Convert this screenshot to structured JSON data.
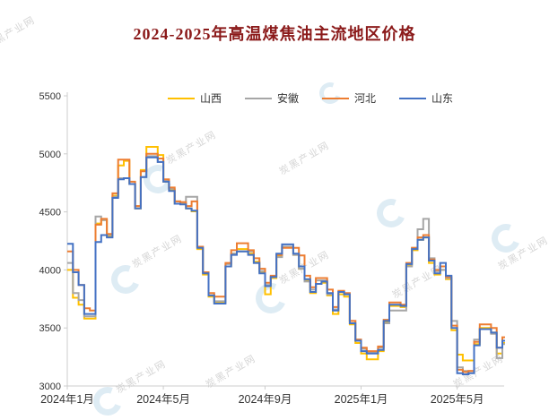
{
  "title": "2024-2025年高温煤焦油主流地区价格",
  "title_color": "#8B1A1A",
  "legend": [
    {
      "label": "山西",
      "color": "#FFC000"
    },
    {
      "label": "安徽",
      "color": "#A6A6A6"
    },
    {
      "label": "河北",
      "color": "#ED7D31"
    },
    {
      "label": "山东",
      "color": "#4472C4"
    }
  ],
  "watermark": {
    "text": "炭黑产业网"
  },
  "axis": {
    "y_tick_labels": [
      "3000",
      "3500",
      "4000",
      "4500",
      "5000",
      "5500"
    ],
    "x_tick_labels": [
      "2024年1月",
      "2024年5月",
      "2024年9月",
      "2025年1月",
      "2025年5月"
    ],
    "axis_color": "#cccccc",
    "label_color": "#333333"
  },
  "chart_data": {
    "type": "line",
    "step": "end",
    "title": "2024-2025年高温煤焦油主流地区价格",
    "xlabel": "",
    "ylabel": "",
    "ylim": [
      3000,
      5500
    ],
    "y_ticks": [
      3000,
      3500,
      4000,
      4500,
      5000,
      5500
    ],
    "grid": false,
    "legend_position": "top",
    "x_tick_labels": [
      "2024年1月",
      "2024年5月",
      "2024年9月",
      "2025年1月",
      "2025年5月"
    ],
    "x_tick_indices": [
      0,
      17,
      35,
      52,
      69
    ],
    "x": [
      "2024-01-05",
      "2024-01-12",
      "2024-01-19",
      "2024-01-26",
      "2024-02-02",
      "2024-02-09",
      "2024-02-16",
      "2024-02-23",
      "2024-03-01",
      "2024-03-08",
      "2024-03-15",
      "2024-03-22",
      "2024-03-29",
      "2024-04-05",
      "2024-04-12",
      "2024-04-19",
      "2024-04-26",
      "2024-05-03",
      "2024-05-10",
      "2024-05-17",
      "2024-05-24",
      "2024-05-31",
      "2024-06-07",
      "2024-06-14",
      "2024-06-21",
      "2024-06-28",
      "2024-07-05",
      "2024-07-12",
      "2024-07-19",
      "2024-07-26",
      "2024-08-02",
      "2024-08-09",
      "2024-08-16",
      "2024-08-23",
      "2024-08-30",
      "2024-09-06",
      "2024-09-13",
      "2024-09-20",
      "2024-09-27",
      "2024-10-04",
      "2024-10-11",
      "2024-10-18",
      "2024-10-25",
      "2024-11-01",
      "2024-11-08",
      "2024-11-15",
      "2024-11-22",
      "2024-11-29",
      "2024-12-06",
      "2024-12-13",
      "2024-12-20",
      "2024-12-27",
      "2025-01-03",
      "2025-01-10",
      "2025-01-17",
      "2025-01-24",
      "2025-01-31",
      "2025-02-07",
      "2025-02-14",
      "2025-02-21",
      "2025-02-28",
      "2025-03-07",
      "2025-03-14",
      "2025-03-21",
      "2025-03-28",
      "2025-04-04",
      "2025-04-11",
      "2025-04-18",
      "2025-04-25",
      "2025-05-02",
      "2025-05-09",
      "2025-05-16",
      "2025-05-23",
      "2025-05-30",
      "2025-06-06",
      "2025-06-13",
      "2025-06-20",
      "2025-06-27"
    ],
    "series": [
      {
        "name": "山西",
        "color": "#FFC000",
        "values": [
          4000,
          3760,
          3700,
          3580,
          3580,
          4400,
          4430,
          4290,
          4640,
          4900,
          4940,
          4740,
          4530,
          4860,
          5060,
          5060,
          4990,
          4760,
          4690,
          4570,
          4570,
          4530,
          4505,
          4180,
          3960,
          3770,
          3720,
          3720,
          4030,
          4140,
          4180,
          4180,
          4140,
          4070,
          3980,
          3790,
          3930,
          4120,
          4200,
          4200,
          4130,
          4010,
          3910,
          3800,
          3880,
          3890,
          3780,
          3620,
          3790,
          3770,
          3530,
          3370,
          3280,
          3230,
          3230,
          3300,
          3550,
          3690,
          3690,
          3680,
          4040,
          4170,
          4260,
          4280,
          4060,
          3960,
          4000,
          3920,
          3480,
          3270,
          3220,
          3220,
          3360,
          3500,
          3500,
          3460,
          3280,
          3370
        ]
      },
      {
        "name": "安徽",
        "color": "#A6A6A6",
        "values": [
          4060,
          3800,
          3740,
          3600,
          3600,
          4460,
          4430,
          4300,
          4630,
          4790,
          4790,
          4740,
          4550,
          4800,
          4980,
          4980,
          4930,
          4770,
          4700,
          4590,
          4580,
          4630,
          4630,
          4200,
          3980,
          3780,
          3730,
          3730,
          4050,
          4140,
          4160,
          4160,
          4160,
          4060,
          3990,
          3870,
          3940,
          4110,
          4200,
          4200,
          4130,
          4010,
          3900,
          3830,
          3910,
          3910,
          3790,
          3660,
          3810,
          3790,
          3560,
          3400,
          3320,
          3290,
          3290,
          3330,
          3540,
          3650,
          3650,
          3650,
          4030,
          4190,
          4350,
          4440,
          4100,
          3990,
          4000,
          3930,
          3560,
          3160,
          3130,
          3130,
          3400,
          3490,
          3490,
          3450,
          3240,
          3360
        ]
      },
      {
        "name": "河北",
        "color": "#ED7D31",
        "values": [
          4160,
          4000,
          3870,
          3670,
          3650,
          4390,
          4440,
          4310,
          4660,
          4950,
          4950,
          4760,
          4550,
          4850,
          5000,
          5000,
          4960,
          4780,
          4710,
          4590,
          4585,
          4550,
          4590,
          4200,
          3980,
          3800,
          3770,
          3770,
          4060,
          4170,
          4230,
          4230,
          4170,
          4100,
          4010,
          3890,
          3950,
          4130,
          4190,
          4190,
          4190,
          4125,
          3950,
          3850,
          3930,
          3930,
          3830,
          3680,
          3820,
          3800,
          3560,
          3400,
          3330,
          3300,
          3300,
          3340,
          3570,
          3720,
          3720,
          3700,
          4060,
          4190,
          4280,
          4300,
          4090,
          4000,
          4030,
          3940,
          3520,
          3140,
          3120,
          3130,
          3380,
          3530,
          3530,
          3500,
          3330,
          3420
        ]
      },
      {
        "name": "山东",
        "color": "#4472C4",
        "values": [
          4225,
          3980,
          3870,
          3620,
          3620,
          4240,
          4300,
          4280,
          4620,
          4780,
          4790,
          4740,
          4530,
          4800,
          4970,
          4970,
          4930,
          4760,
          4680,
          4570,
          4565,
          4530,
          4510,
          4190,
          3970,
          3780,
          3710,
          3710,
          4030,
          4130,
          4160,
          4160,
          4130,
          4060,
          3970,
          3860,
          3940,
          4140,
          4220,
          4220,
          4140,
          4030,
          3920,
          3810,
          3880,
          3900,
          3800,
          3650,
          3810,
          3790,
          3540,
          3390,
          3300,
          3280,
          3280,
          3310,
          3560,
          3700,
          3700,
          3690,
          4050,
          4180,
          4260,
          4280,
          4080,
          3970,
          4060,
          3950,
          3500,
          3110,
          3100,
          3110,
          3350,
          3490,
          3490,
          3460,
          3330,
          3390
        ]
      }
    ]
  }
}
